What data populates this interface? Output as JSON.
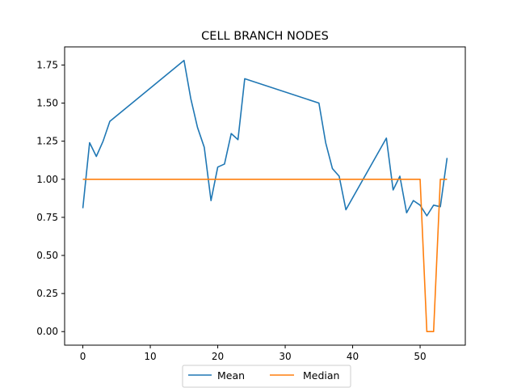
{
  "chart_data": {
    "type": "line",
    "title": "CELL BRANCH NODES",
    "xlabel": "",
    "ylabel": "",
    "xlim": [
      -2.7,
      56.7
    ],
    "ylim": [
      -0.089,
      1.869
    ],
    "xticks": [
      0,
      10,
      20,
      30,
      40,
      50
    ],
    "xtick_labels": [
      "0",
      "10",
      "20",
      "30",
      "40",
      "50"
    ],
    "yticks": [
      0.0,
      0.25,
      0.5,
      0.75,
      1.0,
      1.25,
      1.5,
      1.75
    ],
    "ytick_labels": [
      "0.00",
      "0.25",
      "0.50",
      "0.75",
      "1.00",
      "1.25",
      "1.50",
      "1.75"
    ],
    "grid": false,
    "legend_position": "lower center, outside below axes",
    "series": [
      {
        "name": "Mean",
        "color": "#1f77b4",
        "x": [
          0,
          1,
          2,
          3,
          4,
          15,
          16,
          17,
          18,
          19,
          20,
          21,
          22,
          23,
          24,
          35,
          36,
          37,
          38,
          39,
          45,
          46,
          47,
          48,
          49,
          50,
          51,
          52,
          53,
          54
        ],
        "y": [
          0.81,
          1.24,
          1.15,
          1.25,
          1.38,
          1.78,
          1.53,
          1.34,
          1.21,
          0.86,
          1.08,
          1.1,
          1.3,
          1.26,
          1.66,
          1.5,
          1.24,
          1.07,
          1.02,
          0.8,
          1.27,
          0.93,
          1.02,
          0.78,
          0.86,
          0.83,
          0.76,
          0.83,
          0.82,
          1.14
        ]
      },
      {
        "name": "Median",
        "color": "#ff7f0e",
        "x": [
          0,
          50,
          51,
          52,
          53,
          54
        ],
        "y": [
          1.0,
          1.0,
          0.0,
          0.0,
          1.0,
          1.0
        ]
      }
    ]
  }
}
